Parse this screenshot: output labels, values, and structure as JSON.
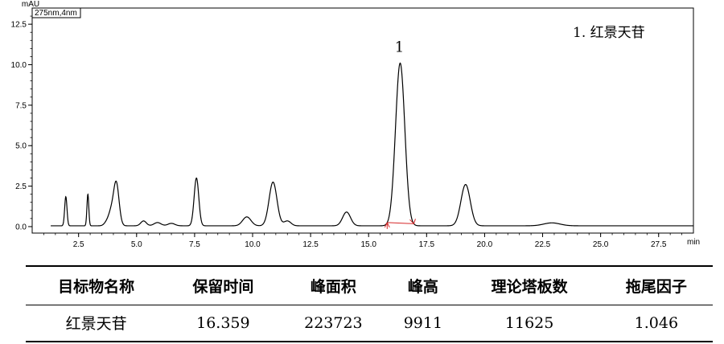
{
  "chart_data": {
    "type": "line",
    "channel": "275nm,4nm",
    "ylabel": "mAU",
    "xlabel": "min",
    "xlim": [
      0.5,
      29.0
    ],
    "ylim": [
      -0.4,
      13.5
    ],
    "xticks": [
      2.5,
      5.0,
      7.5,
      10.0,
      12.5,
      15.0,
      17.5,
      20.0,
      22.5,
      25.0,
      27.5
    ],
    "xtick_labels": [
      "2.5",
      "5.0",
      "7.5",
      "10.0",
      "12.5",
      "15.0",
      "17.5",
      "20.0",
      "22.5",
      "25.0",
      "27.5"
    ],
    "yticks": [
      0.0,
      2.5,
      5.0,
      7.5,
      10.0,
      12.5
    ],
    "ytick_labels": [
      "0.0",
      "2.5",
      "5.0",
      "7.5",
      "10.0",
      "12.5"
    ],
    "baseline": 0.05,
    "peaks": [
      {
        "rt": 1.95,
        "height": 1.8,
        "width": 0.05
      },
      {
        "rt": 2.9,
        "height": 1.95,
        "width": 0.04
      },
      {
        "rt": 3.75,
        "height": 0.3,
        "width": 0.12
      },
      {
        "rt": 3.9,
        "height": 0.6,
        "width": 0.1
      },
      {
        "rt": 4.12,
        "height": 2.7,
        "width": 0.12
      },
      {
        "rt": 5.3,
        "height": 0.3,
        "width": 0.12
      },
      {
        "rt": 5.9,
        "height": 0.2,
        "width": 0.15
      },
      {
        "rt": 6.5,
        "height": 0.15,
        "width": 0.15
      },
      {
        "rt": 7.58,
        "height": 2.95,
        "width": 0.1
      },
      {
        "rt": 9.75,
        "height": 0.55,
        "width": 0.18
      },
      {
        "rt": 10.88,
        "height": 2.7,
        "width": 0.17
      },
      {
        "rt": 11.5,
        "height": 0.3,
        "width": 0.15
      },
      {
        "rt": 14.05,
        "height": 0.85,
        "width": 0.17
      },
      {
        "rt": 16.36,
        "height": 10.05,
        "width": 0.2
      },
      {
        "rt": 19.18,
        "height": 2.55,
        "width": 0.2
      },
      {
        "rt": 22.9,
        "height": 0.18,
        "width": 0.35
      }
    ],
    "integration_markers": [
      15.8,
      16.95
    ],
    "peak_labels": [
      {
        "text": "1",
        "rt": 16.36,
        "y": 10.8
      }
    ],
    "legend": "1.  红景天苷",
    "legend_position": "top-right",
    "grid": false
  },
  "table": {
    "headers": [
      "目标物名称",
      "保留时间",
      "峰面积",
      "峰高",
      "理论塔板数",
      "拖尾因子"
    ],
    "rows": [
      [
        "红景天苷",
        "16.359",
        "223723",
        "9911",
        "11625",
        "1.046"
      ]
    ]
  },
  "colors": {
    "trace": "#000000",
    "marker": "#d62728",
    "axis": "#000000"
  }
}
